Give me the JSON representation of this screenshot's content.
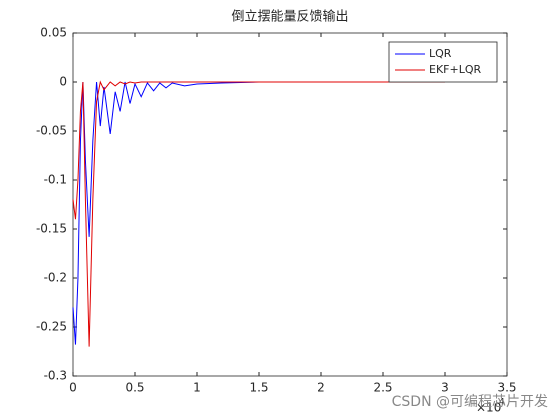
{
  "chart_data": {
    "type": "line",
    "title": "倒立摆能量反馈输出",
    "x": [
      0,
      0.02,
      0.04,
      0.06,
      0.08,
      0.1,
      0.13,
      0.16,
      0.19,
      0.22,
      0.25,
      0.3,
      0.34,
      0.38,
      0.42,
      0.46,
      0.5,
      0.55,
      0.6,
      0.65,
      0.7,
      0.75,
      0.8,
      0.9,
      1.0,
      1.2,
      1.5,
      2,
      3
    ],
    "series": [
      {
        "name": "LQR",
        "color": "#0000ff",
        "values": [
          -0.23,
          -0.268,
          -0.2,
          -0.06,
          0,
          -0.08,
          -0.158,
          -0.06,
          0,
          -0.045,
          -0.005,
          -0.053,
          -0.01,
          -0.03,
          0,
          -0.022,
          -0.002,
          -0.015,
          -0.001,
          -0.009,
          -0.001,
          -0.006,
          -0.001,
          -0.004,
          -0.002,
          -0.001,
          0,
          0,
          0
        ]
      },
      {
        "name": "EKF+LQR",
        "color": "#e00000",
        "values": [
          -0.12,
          -0.14,
          -0.1,
          -0.03,
          0,
          -0.12,
          -0.27,
          -0.12,
          -0.02,
          0,
          -0.008,
          0,
          -0.004,
          0,
          -0.002,
          0,
          -0.001,
          0,
          0,
          0,
          0,
          0,
          0,
          0,
          0,
          0,
          0,
          0,
          0
        ]
      }
    ],
    "xlim": [
      0,
      3.5
    ],
    "xticks": [
      0,
      0.5,
      1,
      1.5,
      2,
      2.5,
      3,
      3.5
    ],
    "x_multiplier": "×10",
    "x_multiplier_power": "4",
    "ylim": [
      -0.3,
      0.05
    ],
    "yticks": [
      -0.3,
      -0.25,
      -0.2,
      -0.15,
      -0.1,
      -0.05,
      0,
      0.05
    ],
    "legend": "upper right",
    "grid": false
  },
  "watermark": "CSDN @可编程芯片开发"
}
